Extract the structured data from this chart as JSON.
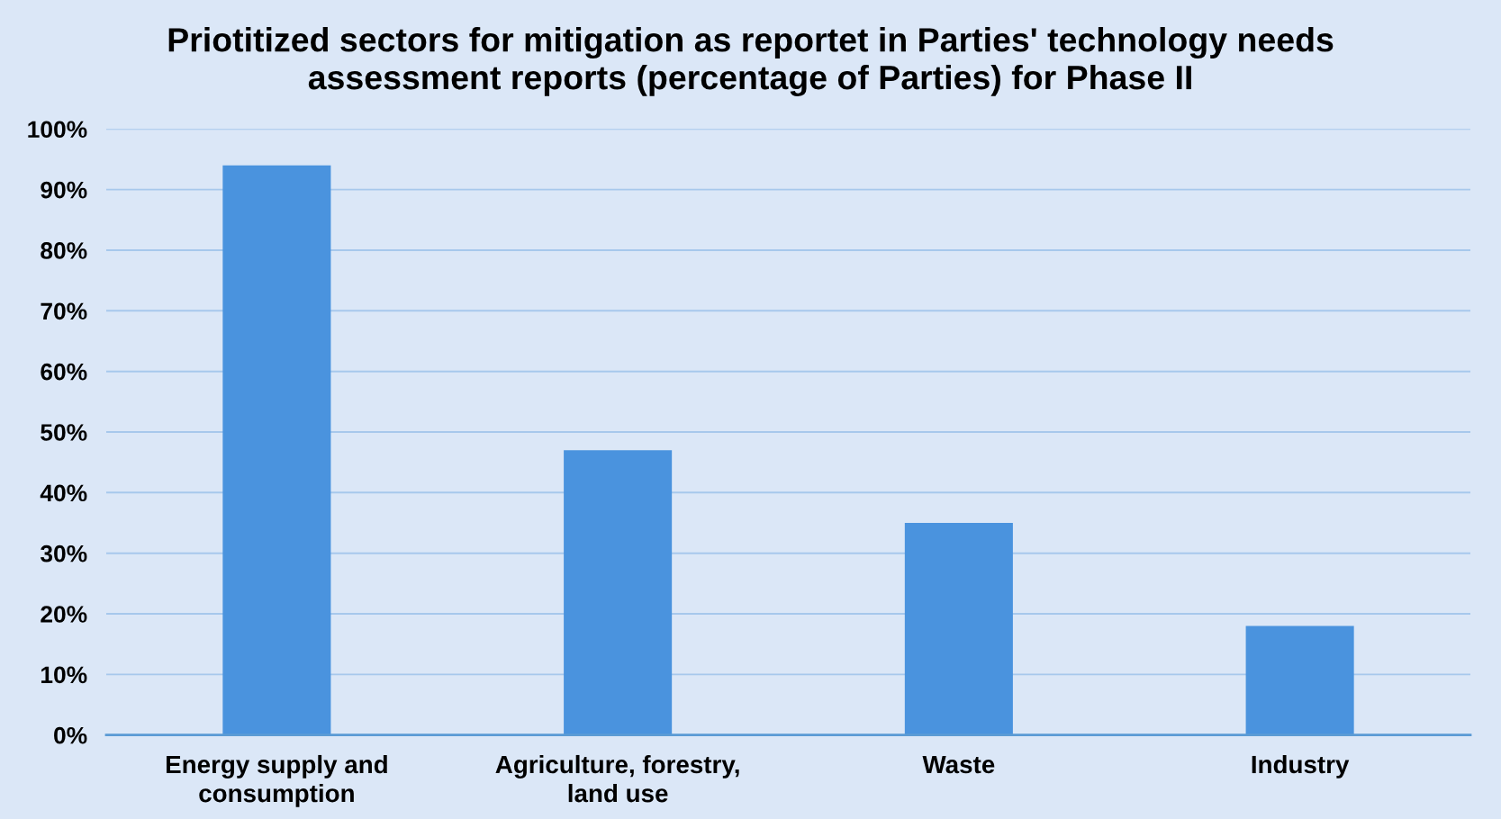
{
  "chart_data": {
    "type": "bar",
    "title": "Priotitized sectors for mitigation as reportet in Parties' technology needs assessment reports (percentage of Parties) for Phase II",
    "categories": [
      "Energy supply and consumption",
      "Agriculture, forestry, land use",
      "Waste",
      "Industry"
    ],
    "values": [
      94,
      47,
      35,
      18
    ],
    "color": "#4a93de",
    "ylim": [
      0,
      100
    ],
    "yticks": [
      {
        "value": 0,
        "label": "0%"
      },
      {
        "value": 10,
        "label": "10%"
      },
      {
        "value": 20,
        "label": "20%"
      },
      {
        "value": 30,
        "label": "30%"
      },
      {
        "value": 40,
        "label": "40%"
      },
      {
        "value": 50,
        "label": "50%"
      },
      {
        "value": 60,
        "label": "60%"
      },
      {
        "value": 70,
        "label": "70%"
      },
      {
        "value": 80,
        "label": "80%"
      },
      {
        "value": 90,
        "label": "90%"
      },
      {
        "value": 100,
        "label": "100%"
      }
    ],
    "grid": "y"
  }
}
